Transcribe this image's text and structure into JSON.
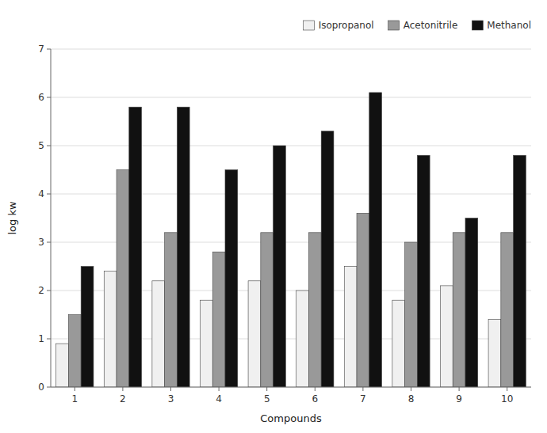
{
  "chart_data": {
    "type": "bar",
    "categories": [
      "1",
      "2",
      "3",
      "4",
      "5",
      "6",
      "7",
      "8",
      "9",
      "10"
    ],
    "series": [
      {
        "name": "Isopropanol",
        "color": "#f0f0f0",
        "values": [
          0.9,
          2.4,
          2.2,
          1.8,
          2.2,
          2.0,
          2.5,
          1.8,
          2.1,
          1.4
        ]
      },
      {
        "name": "Acetonitrile",
        "color": "#999999",
        "values": [
          1.5,
          4.5,
          3.2,
          2.8,
          3.2,
          3.2,
          3.6,
          3.0,
          3.2,
          3.2
        ]
      },
      {
        "name": "Methanol",
        "color": "#111111",
        "values": [
          2.5,
          5.8,
          5.8,
          4.5,
          5.0,
          5.3,
          6.1,
          4.8,
          3.5,
          4.8
        ]
      }
    ],
    "xlabel": "Compounds",
    "ylabel": "log kw",
    "ylim": [
      0,
      7
    ],
    "yticks": [
      0,
      1,
      2,
      3,
      4,
      5,
      6,
      7
    ],
    "grid": true,
    "legend": "upper right"
  }
}
